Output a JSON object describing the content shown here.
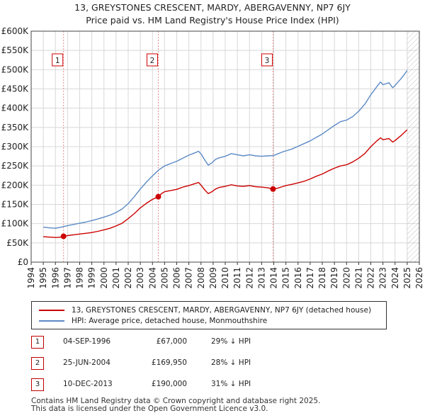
{
  "title_line1": "13, GREYSTONES CRESCENT, MARDY, ABERGAVENNY, NP7 6JY",
  "title_line2": "Price paid vs. HM Land Registry's House Price Index (HPI)",
  "colors": {
    "property": "#cc0000",
    "hpi": "#5b8ac6",
    "grid": "#d8d8d8",
    "marker_line": "#e88b8b",
    "future_hatch": "#999999"
  },
  "chart_data": {
    "type": "line",
    "title": "Price paid vs. HM Land Registry's House Price Index (HPI)",
    "xlim": [
      1994,
      2026
    ],
    "ylim": [
      0,
      600000
    ],
    "x_ticks": [
      "1994",
      "1995",
      "1996",
      "1997",
      "1998",
      "1999",
      "2000",
      "2001",
      "2002",
      "2003",
      "2004",
      "2005",
      "2006",
      "2007",
      "2008",
      "2009",
      "2010",
      "2011",
      "2012",
      "2013",
      "2014",
      "2015",
      "2016",
      "2017",
      "2018",
      "2019",
      "2020",
      "2021",
      "2022",
      "2023",
      "2024",
      "2025",
      "2026"
    ],
    "y_ticks": [
      {
        "value": 0,
        "label": "£0"
      },
      {
        "value": 50000,
        "label": "£50K"
      },
      {
        "value": 100000,
        "label": "£100K"
      },
      {
        "value": 150000,
        "label": "£150K"
      },
      {
        "value": 200000,
        "label": "£200K"
      },
      {
        "value": 250000,
        "label": "£250K"
      },
      {
        "value": 300000,
        "label": "£300K"
      },
      {
        "value": 350000,
        "label": "£350K"
      },
      {
        "value": 400000,
        "label": "£400K"
      },
      {
        "value": 450000,
        "label": "£450K"
      },
      {
        "value": 500000,
        "label": "£500K"
      },
      {
        "value": 550000,
        "label": "£550K"
      },
      {
        "value": 600000,
        "label": "£600K"
      }
    ],
    "future_from": 2025.0,
    "series": [
      {
        "name": "13, GREYSTONES CRESCENT, MARDY, ABERGAVENNY, NP7 6JY (detached house)",
        "color": "#cc0000",
        "points": [
          [
            1995.0,
            66000
          ],
          [
            1995.5,
            65000
          ],
          [
            1996.0,
            64000
          ],
          [
            1996.5,
            65000
          ],
          [
            1996.67,
            67000
          ],
          [
            1997.0,
            69000
          ],
          [
            1997.5,
            71000
          ],
          [
            1998.0,
            73000
          ],
          [
            1998.5,
            75000
          ],
          [
            1999.0,
            77000
          ],
          [
            1999.5,
            80000
          ],
          [
            2000.0,
            84000
          ],
          [
            2000.5,
            88000
          ],
          [
            2001.0,
            94000
          ],
          [
            2001.5,
            101000
          ],
          [
            2002.0,
            113000
          ],
          [
            2002.5,
            126000
          ],
          [
            2003.0,
            141000
          ],
          [
            2003.5,
            153000
          ],
          [
            2004.0,
            163000
          ],
          [
            2004.48,
            169950
          ],
          [
            2004.8,
            179000
          ],
          [
            2005.0,
            183000
          ],
          [
            2005.5,
            186000
          ],
          [
            2006.0,
            189000
          ],
          [
            2006.5,
            195000
          ],
          [
            2007.0,
            199000
          ],
          [
            2007.5,
            204000
          ],
          [
            2007.8,
            207000
          ],
          [
            2008.0,
            200000
          ],
          [
            2008.3,
            188000
          ],
          [
            2008.6,
            178000
          ],
          [
            2008.9,
            183000
          ],
          [
            2009.2,
            190000
          ],
          [
            2009.5,
            194000
          ],
          [
            2010.0,
            197000
          ],
          [
            2010.5,
            201000
          ],
          [
            2011.0,
            198000
          ],
          [
            2011.5,
            197000
          ],
          [
            2012.0,
            199000
          ],
          [
            2012.5,
            196000
          ],
          [
            2013.0,
            195000
          ],
          [
            2013.5,
            193000
          ],
          [
            2013.94,
            190000
          ],
          [
            2014.3,
            192000
          ],
          [
            2014.7,
            196000
          ],
          [
            2015.0,
            199000
          ],
          [
            2015.5,
            202000
          ],
          [
            2016.0,
            206000
          ],
          [
            2016.5,
            210000
          ],
          [
            2017.0,
            216000
          ],
          [
            2017.5,
            223000
          ],
          [
            2018.0,
            229000
          ],
          [
            2018.5,
            237000
          ],
          [
            2019.0,
            244000
          ],
          [
            2019.5,
            250000
          ],
          [
            2020.0,
            253000
          ],
          [
            2020.5,
            260000
          ],
          [
            2021.0,
            270000
          ],
          [
            2021.5,
            282000
          ],
          [
            2022.0,
            300000
          ],
          [
            2022.5,
            315000
          ],
          [
            2022.8,
            323000
          ],
          [
            2023.0,
            318000
          ],
          [
            2023.5,
            321000
          ],
          [
            2023.8,
            312000
          ],
          [
            2024.0,
            316000
          ],
          [
            2024.5,
            329000
          ],
          [
            2024.8,
            338000
          ],
          [
            2025.0,
            344000
          ]
        ]
      },
      {
        "name": "HPI: Average price, detached house, Monmouthshire",
        "color": "#5b8ac6",
        "points": [
          [
            1995.0,
            91000
          ],
          [
            1995.5,
            89000
          ],
          [
            1996.0,
            88000
          ],
          [
            1996.5,
            91000
          ],
          [
            1997.0,
            95000
          ],
          [
            1997.5,
            98000
          ],
          [
            1998.0,
            101000
          ],
          [
            1998.5,
            104000
          ],
          [
            1999.0,
            108000
          ],
          [
            1999.5,
            112000
          ],
          [
            2000.0,
            117000
          ],
          [
            2000.5,
            122000
          ],
          [
            2001.0,
            129000
          ],
          [
            2001.5,
            138000
          ],
          [
            2002.0,
            152000
          ],
          [
            2002.5,
            170000
          ],
          [
            2003.0,
            190000
          ],
          [
            2003.5,
            208000
          ],
          [
            2004.0,
            224000
          ],
          [
            2004.5,
            239000
          ],
          [
            2005.0,
            250000
          ],
          [
            2005.5,
            256000
          ],
          [
            2006.0,
            262000
          ],
          [
            2006.5,
            270000
          ],
          [
            2007.0,
            278000
          ],
          [
            2007.5,
            284000
          ],
          [
            2007.8,
            288000
          ],
          [
            2008.0,
            281000
          ],
          [
            2008.3,
            266000
          ],
          [
            2008.6,
            252000
          ],
          [
            2008.9,
            258000
          ],
          [
            2009.2,
            267000
          ],
          [
            2009.5,
            271000
          ],
          [
            2010.0,
            275000
          ],
          [
            2010.5,
            282000
          ],
          [
            2011.0,
            279000
          ],
          [
            2011.5,
            276000
          ],
          [
            2012.0,
            279000
          ],
          [
            2012.5,
            276000
          ],
          [
            2013.0,
            275000
          ],
          [
            2013.5,
            276000
          ],
          [
            2014.0,
            277000
          ],
          [
            2014.3,
            281000
          ],
          [
            2014.7,
            286000
          ],
          [
            2015.0,
            289000
          ],
          [
            2015.5,
            294000
          ],
          [
            2016.0,
            301000
          ],
          [
            2016.5,
            308000
          ],
          [
            2017.0,
            315000
          ],
          [
            2017.5,
            324000
          ],
          [
            2018.0,
            333000
          ],
          [
            2018.5,
            344000
          ],
          [
            2019.0,
            355000
          ],
          [
            2019.5,
            365000
          ],
          [
            2020.0,
            369000
          ],
          [
            2020.5,
            378000
          ],
          [
            2021.0,
            392000
          ],
          [
            2021.5,
            410000
          ],
          [
            2022.0,
            435000
          ],
          [
            2022.5,
            456000
          ],
          [
            2022.8,
            468000
          ],
          [
            2023.0,
            461000
          ],
          [
            2023.5,
            466000
          ],
          [
            2023.8,
            453000
          ],
          [
            2024.0,
            459000
          ],
          [
            2024.5,
            477000
          ],
          [
            2024.8,
            489000
          ],
          [
            2025.0,
            498000
          ]
        ]
      }
    ],
    "sales": [
      {
        "label": "1",
        "x": 1996.67,
        "y": 67000
      },
      {
        "label": "2",
        "x": 2004.48,
        "y": 169950
      },
      {
        "label": "3",
        "x": 2013.94,
        "y": 190000
      }
    ]
  },
  "legend": {
    "property_label": "13, GREYSTONES CRESCENT, MARDY, ABERGAVENNY, NP7 6JY (detached house)",
    "hpi_label": "HPI: Average price, detached house, Monmouthshire"
  },
  "sales_table": [
    {
      "num": "1",
      "date": "04-SEP-1996",
      "price": "£67,000",
      "hpi": "29% ↓ HPI"
    },
    {
      "num": "2",
      "date": "25-JUN-2004",
      "price": "£169,950",
      "hpi": "28% ↓ HPI"
    },
    {
      "num": "3",
      "date": "10-DEC-2013",
      "price": "£190,000",
      "hpi": "31% ↓ HPI"
    }
  ],
  "footer_line1": "Contains HM Land Registry data © Crown copyright and database right 2025.",
  "footer_line2": "This data is licensed under the Open Government Licence v3.0."
}
